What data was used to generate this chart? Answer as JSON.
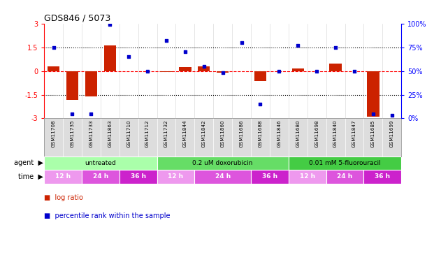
{
  "title": "GDS846 / 5073",
  "samples": [
    "GSM11708",
    "GSM11735",
    "GSM11733",
    "GSM11863",
    "GSM11710",
    "GSM11712",
    "GSM11732",
    "GSM11844",
    "GSM11842",
    "GSM11860",
    "GSM11686",
    "GSM11688",
    "GSM11846",
    "GSM11680",
    "GSM11698",
    "GSM11840",
    "GSM11847",
    "GSM11685",
    "GSM11699"
  ],
  "log_ratio": [
    0.3,
    -1.85,
    -1.6,
    1.6,
    0.0,
    0.0,
    -0.07,
    0.25,
    0.3,
    -0.1,
    0.0,
    -0.65,
    0.0,
    0.15,
    0.0,
    0.45,
    0.0,
    -2.9,
    0.0
  ],
  "percentile": [
    75,
    5,
    5,
    99,
    65,
    50,
    82,
    70,
    55,
    48,
    80,
    15,
    50,
    77,
    50,
    75,
    50,
    5,
    3
  ],
  "ylim_left": [
    -3,
    3
  ],
  "ylim_right": [
    0,
    100
  ],
  "yticks_left": [
    -3,
    -1.5,
    0,
    1.5,
    3
  ],
  "yticks_right": [
    0,
    25,
    50,
    75,
    100
  ],
  "ytick_labels_left": [
    "-3",
    "-1.5",
    "0",
    "1.5",
    "3"
  ],
  "ytick_labels_right": [
    "0%",
    "25%",
    "50%",
    "75%",
    "100%"
  ],
  "hlines": [
    1.5,
    -1.5
  ],
  "bar_color": "#cc2200",
  "dot_color": "#0000cc",
  "agent_groups": [
    {
      "label": "untreated",
      "start": 0,
      "end": 6,
      "color": "#aaffaa"
    },
    {
      "label": "0.2 uM doxorubicin",
      "start": 6,
      "end": 13,
      "color": "#66dd66"
    },
    {
      "label": "0.01 mM 5-fluorouracil",
      "start": 13,
      "end": 19,
      "color": "#44cc44"
    }
  ],
  "time_groups": [
    {
      "label": "12 h",
      "start": 0,
      "end": 2,
      "color": "#ee99ee"
    },
    {
      "label": "24 h",
      "start": 2,
      "end": 4,
      "color": "#dd55dd"
    },
    {
      "label": "36 h",
      "start": 4,
      "end": 6,
      "color": "#cc22cc"
    },
    {
      "label": "12 h",
      "start": 6,
      "end": 8,
      "color": "#ee99ee"
    },
    {
      "label": "24 h",
      "start": 8,
      "end": 11,
      "color": "#dd55dd"
    },
    {
      "label": "36 h",
      "start": 11,
      "end": 13,
      "color": "#cc22cc"
    },
    {
      "label": "12 h",
      "start": 13,
      "end": 15,
      "color": "#ee99ee"
    },
    {
      "label": "24 h",
      "start": 15,
      "end": 17,
      "color": "#dd55dd"
    },
    {
      "label": "36 h",
      "start": 17,
      "end": 19,
      "color": "#cc22cc"
    }
  ],
  "legend_bar_label": "log ratio",
  "legend_dot_label": "percentile rank within the sample"
}
